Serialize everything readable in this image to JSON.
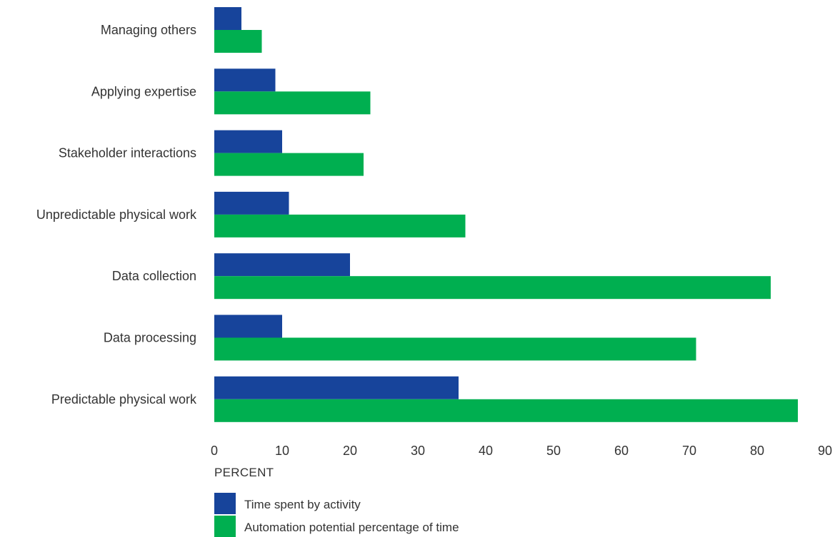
{
  "chart_data": {
    "type": "bar",
    "orientation": "horizontal",
    "categories": [
      "Managing others",
      "Applying expertise",
      "Stakeholder interactions",
      "Unpredictable physical work",
      "Data collection",
      "Data processing",
      "Predictable physical work"
    ],
    "series": [
      {
        "name": "Time spent by activity",
        "color": "#17449b",
        "values": [
          4,
          9,
          10,
          11,
          20,
          10,
          36
        ]
      },
      {
        "name": "Automation potential percentage of time",
        "color": "#00af50",
        "values": [
          7,
          23,
          22,
          37,
          82,
          71,
          86
        ]
      }
    ],
    "xlabel": "PERCENT",
    "xlim": [
      0,
      90
    ],
    "xticks": [
      0,
      10,
      20,
      30,
      40,
      50,
      60,
      70,
      80,
      90
    ],
    "grid": false,
    "legend_position": "bottom-left"
  }
}
